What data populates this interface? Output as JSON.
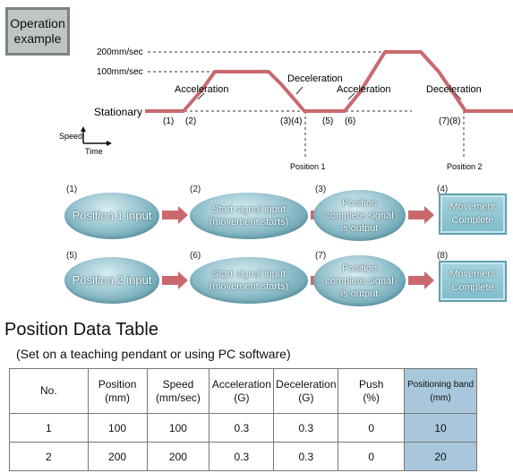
{
  "operation_example": {
    "line1": "Operation",
    "line2": "example"
  },
  "timing": {
    "speed_200": "200mm/sec",
    "speed_100": "100mm/sec",
    "stationary": "Stationary",
    "phase_labels": [
      "Acceleration",
      "Deceleration",
      "Acceleration",
      "Deceleration"
    ],
    "markers": [
      "(1)",
      "(2)",
      "(3)(4)",
      "(5)",
      "(6)",
      "(7)(8)"
    ],
    "position_labels": [
      "Position 1",
      "Position 2"
    ],
    "axis_speed": "Speed",
    "axis_time": "Time",
    "line_color": "#c9696e"
  },
  "flow": {
    "row1": [
      {
        "num": "(1)",
        "lines": [
          "Position 1 input"
        ]
      },
      {
        "num": "(2)",
        "lines": [
          "Start signal input",
          "(movement starts)"
        ]
      },
      {
        "num": "(3)",
        "lines": [
          "Position",
          "complete signal",
          "is output"
        ]
      },
      {
        "num": "(4)",
        "lines": [
          "Movement",
          "Complete"
        ]
      }
    ],
    "row2": [
      {
        "num": "(5)",
        "lines": [
          "Position 2 input"
        ]
      },
      {
        "num": "(6)",
        "lines": [
          "Start signal input",
          "(movement starts)"
        ]
      },
      {
        "num": "(7)",
        "lines": [
          "Position",
          "complete signal",
          "is output"
        ]
      },
      {
        "num": "(8)",
        "lines": [
          "Movement",
          "Complete"
        ]
      }
    ]
  },
  "table": {
    "title": "Position Data Table",
    "subtitle": "(Set on a teaching pendant or using PC software)",
    "headers": [
      [
        "No."
      ],
      [
        "Position",
        "(mm)"
      ],
      [
        "Speed",
        "(mm/sec)"
      ],
      [
        "Acceleration",
        "(G)"
      ],
      [
        "Deceleration",
        "(G)"
      ],
      [
        "Push",
        "(%)"
      ],
      [
        "Positioning band",
        "(mm)"
      ]
    ],
    "rows": [
      [
        "1",
        "100",
        "100",
        "0.3",
        "0.3",
        "0",
        "10"
      ],
      [
        "2",
        "200",
        "200",
        "0.3",
        "0.3",
        "0",
        "20"
      ]
    ]
  }
}
